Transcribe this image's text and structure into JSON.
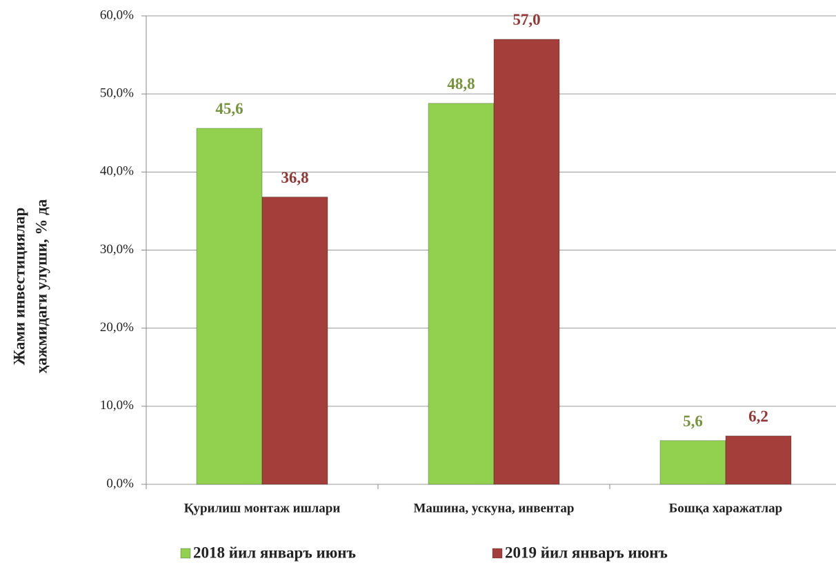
{
  "chart_data": {
    "type": "bar",
    "ylabel": [
      "Жами инвестициялар",
      "ҳажмидаги улуши, % да"
    ],
    "categories": [
      "Қурилиш монтаж ишлари",
      "Машина, ускуна, инвентар",
      "Бошқа харажатлар"
    ],
    "series": [
      {
        "name": "2018 йил январъ июнъ",
        "color": "#92d050",
        "label_color": "#77933c",
        "values": [
          45.6,
          48.8,
          5.6
        ],
        "value_labels": [
          "45,6",
          "48,8",
          "5,6"
        ]
      },
      {
        "name": "2019 йил январъ июнъ",
        "color": "#a33e3b",
        "label_color": "#953735",
        "values": [
          36.8,
          57.0,
          6.2
        ],
        "value_labels": [
          "36,8",
          "57,0",
          "6,2"
        ]
      }
    ],
    "ylim": [
      0,
      60
    ],
    "yticks": [
      {
        "value": 0,
        "label": "0,0%"
      },
      {
        "value": 10,
        "label": "10,0%"
      },
      {
        "value": 20,
        "label": "20,0%"
      },
      {
        "value": 30,
        "label": "30,0%"
      },
      {
        "value": 40,
        "label": "40,0%"
      },
      {
        "value": 50,
        "label": "50,0%"
      },
      {
        "value": 60,
        "label": "60,0%"
      }
    ],
    "grid": true,
    "legend": "bottom"
  }
}
